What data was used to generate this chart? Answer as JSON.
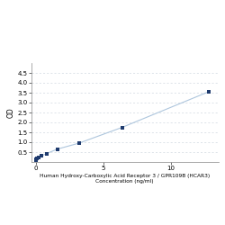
{
  "x": [
    0,
    0.05,
    0.1,
    0.2,
    0.4,
    0.8,
    1.6,
    3.2,
    6.4,
    12.8
  ],
  "y": [
    0.1,
    0.15,
    0.18,
    0.22,
    0.3,
    0.42,
    0.65,
    0.95,
    1.75,
    3.55
  ],
  "line_color": "#aec6dd",
  "marker_color": "#1f3b6e",
  "marker_size": 3.5,
  "xlabel_line1": "Human Hydroxy-Carboxylic Acid Receptor 3 / GPR109B (HCAR3)",
  "xlabel_line2": "Concentration (ng/ml)",
  "ylabel": "OD",
  "xlim": [
    -0.3,
    13.5
  ],
  "ylim": [
    0,
    5.0
  ],
  "yticks": [
    0.5,
    1.0,
    1.5,
    2.0,
    2.5,
    3.0,
    3.5,
    4.0,
    4.5
  ],
  "xticks": [
    0,
    5,
    10
  ],
  "xtick_labels": [
    "0",
    "5",
    "10"
  ],
  "grid_color": "#d0d8e0",
  "background_color": "#ffffff",
  "xlabel_fontsize": 4.2,
  "ylabel_fontsize": 5.5,
  "tick_fontsize": 5
}
